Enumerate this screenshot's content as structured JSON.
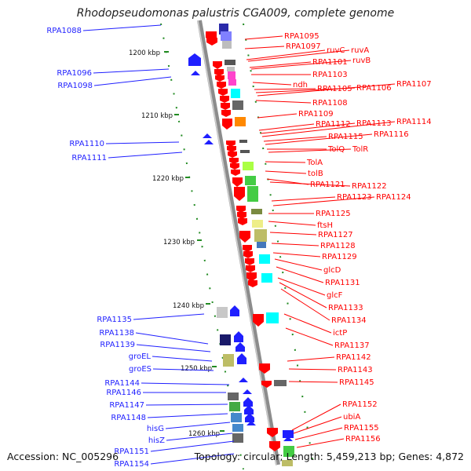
{
  "title": "Rhodopseudomonas palustris CGA009, complete genome",
  "accession": "Accession: NC_005296",
  "summary": "Topology: circular; Length: 5,459,213 bp; Genes: 4,872",
  "colors": {
    "forward": "#1f1fff",
    "reverse": "#ff0000",
    "tick": "#228b22",
    "axis": "#8c8c8c"
  },
  "scale": {
    "ticks": [
      "1200 kbp",
      "1210 kbp",
      "1220 kbp",
      "1230 kbp",
      "1240 kbp",
      "1250 kbp",
      "1260 kbp"
    ]
  },
  "right_labels": [
    "RPA1095",
    "RPA1097",
    "ruvC",
    "ruvA",
    "RPA1101",
    "ruvB",
    "RPA1103",
    "ndh",
    "RPA1105",
    "RPA1106",
    "RPA1107",
    "RPA1108",
    "RPA1109",
    "RPA1112",
    "RPA1113",
    "RPA1114",
    "RPA1115",
    "RPA1116",
    "TolQ",
    "TolR",
    "TolA",
    "tolB",
    "RPA1121",
    "RPA1122",
    "RPA1123",
    "RPA1124",
    "RPA1125",
    "ftsH",
    "RPA1127",
    "RPA1128",
    "RPA1129",
    "glcD",
    "RPA1131",
    "glcF",
    "RPA1133",
    "RPA1134",
    "ictP",
    "RPA1137",
    "RPA1142",
    "RPA1143",
    "RPA1145",
    "RPA1152",
    "ubiA",
    "RPA1155",
    "RPA1156"
  ],
  "left_labels": [
    "RPA1088",
    "RPA1096",
    "RPA1098",
    "RPA1110",
    "RPA1111",
    "RPA1135",
    "RPA1138",
    "RPA1139",
    "groEL",
    "groES",
    "RPA1144",
    "RPA1146",
    "RPA1147",
    "RPA1148",
    "hisG",
    "hisZ",
    "RPA1151",
    "RPA1154"
  ]
}
